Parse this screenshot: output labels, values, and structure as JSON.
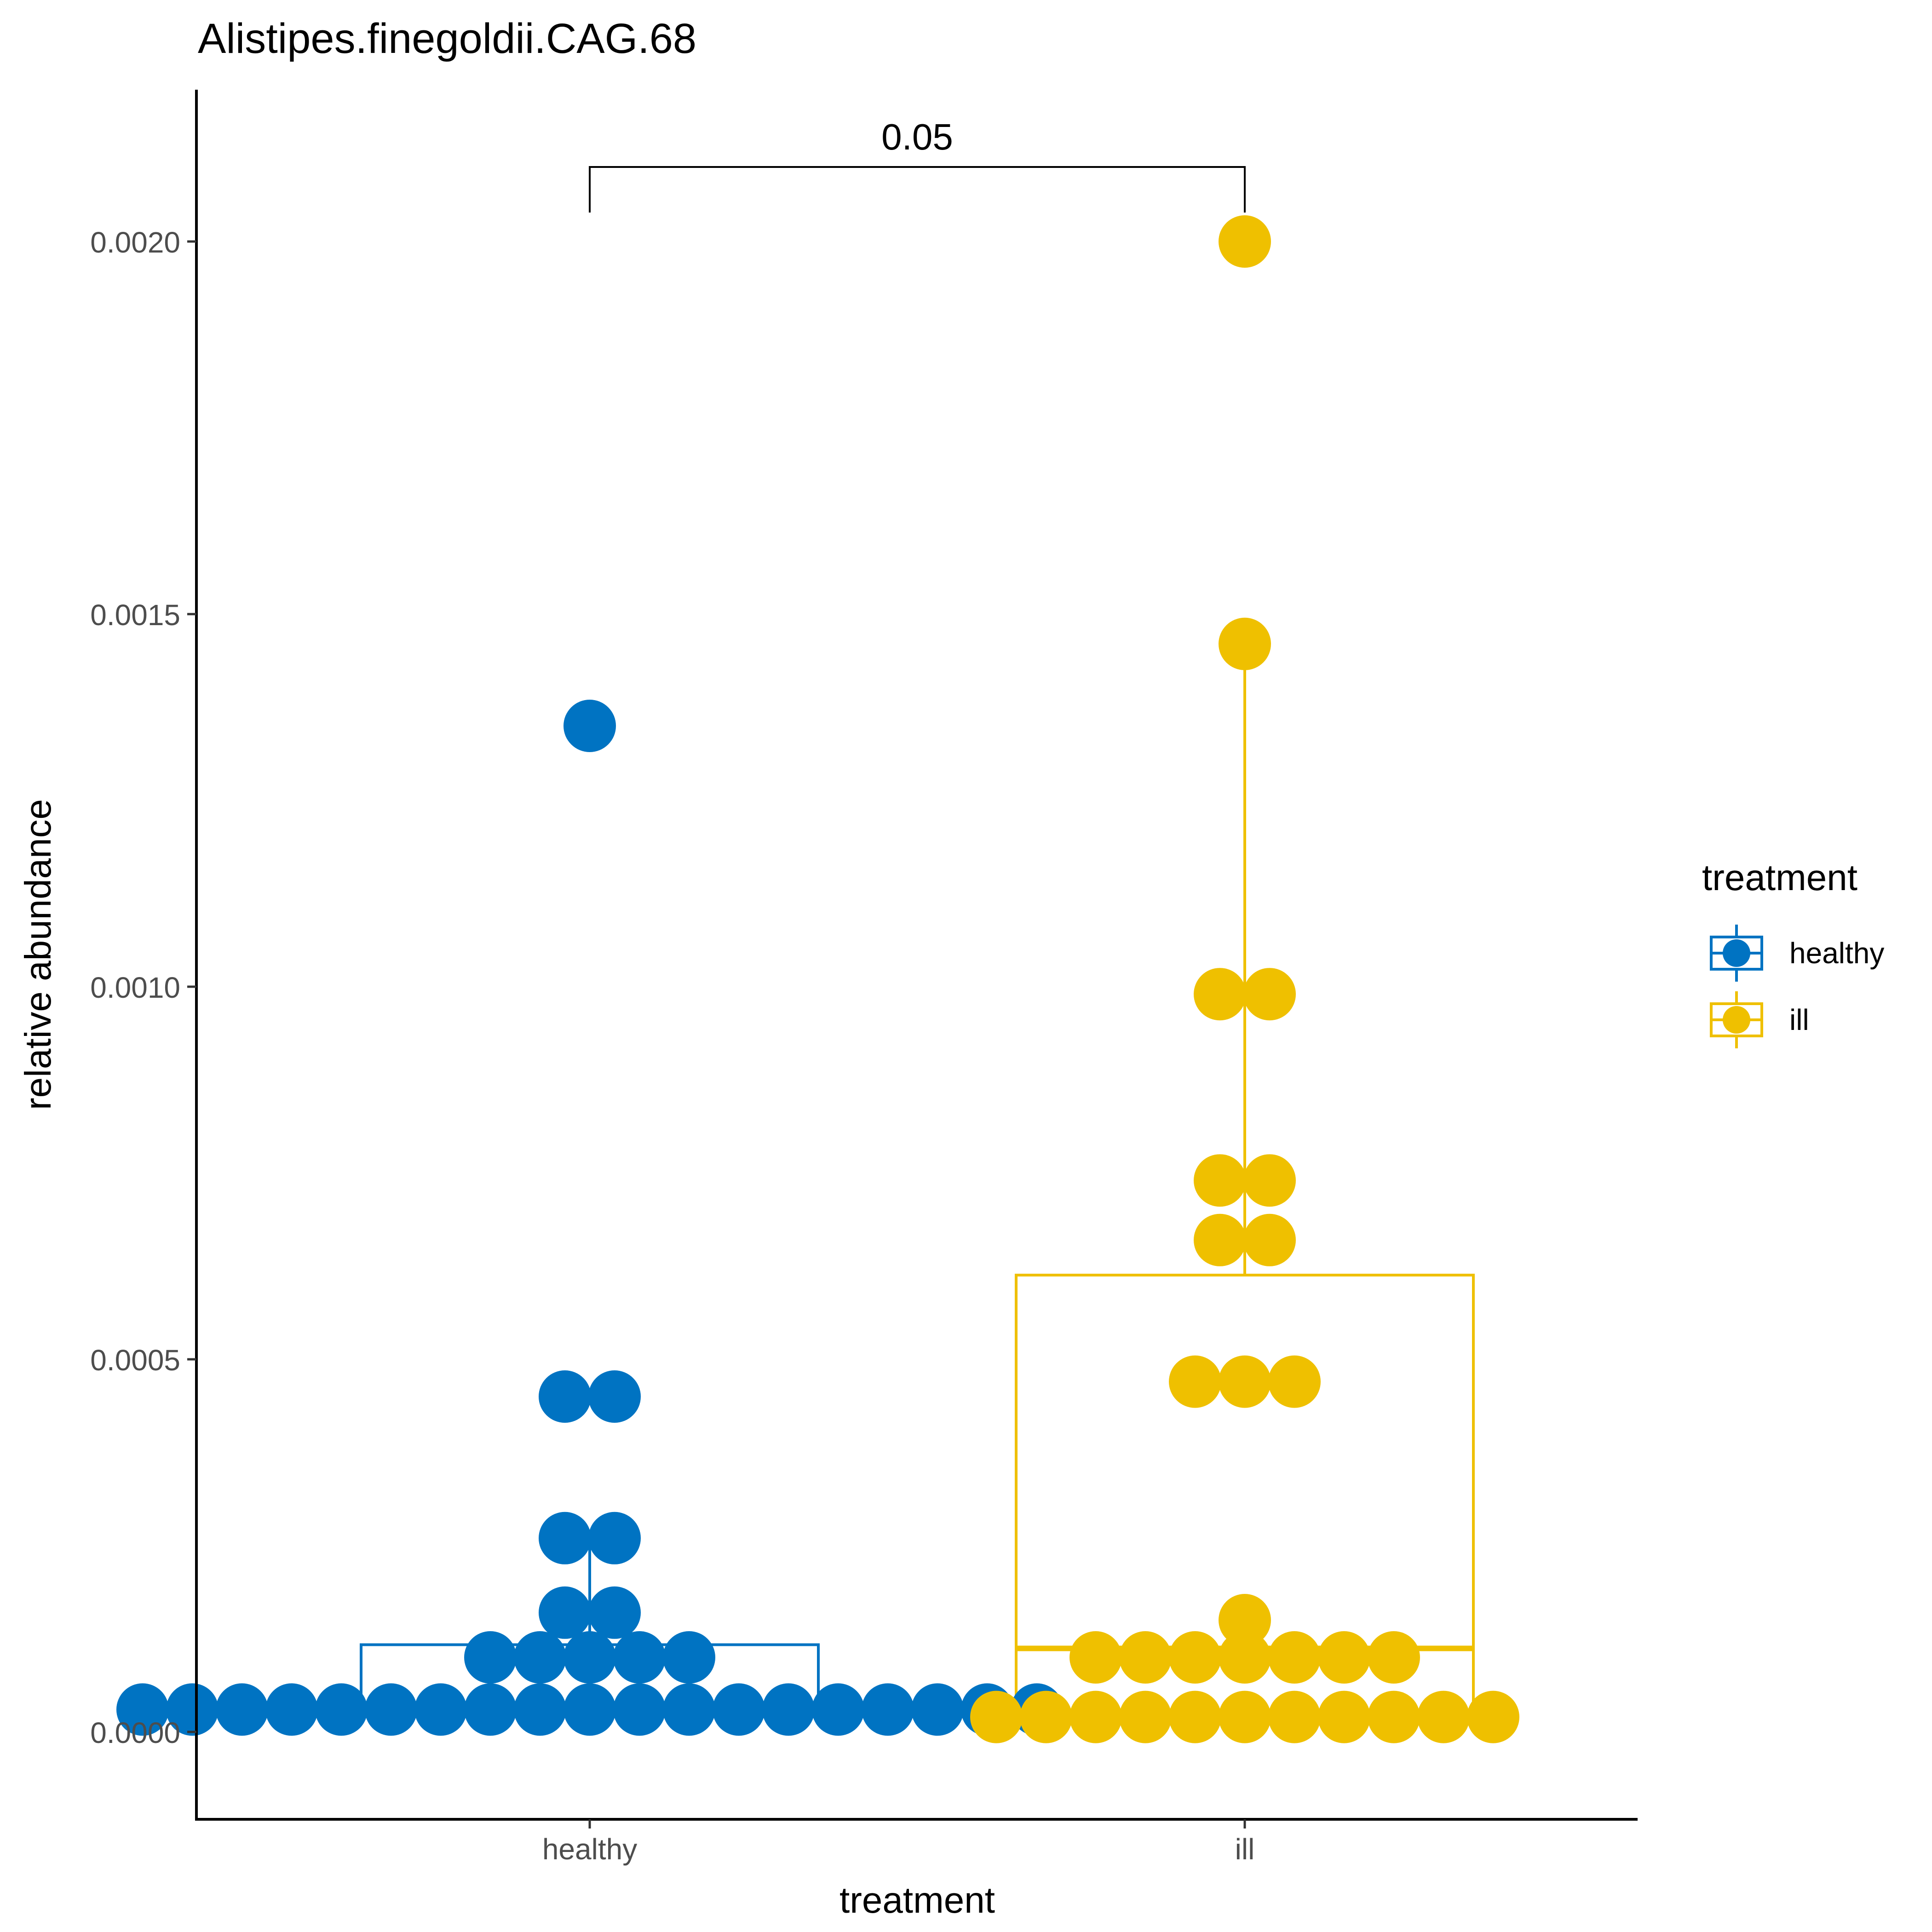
{
  "chart_data": {
    "type": "scatter",
    "title": "Alistipes.finegoldii.CAG.68",
    "xlabel": "treatment",
    "ylabel": "relative abundance",
    "categories": [
      "healthy",
      "ill"
    ],
    "ylim": [
      -0.000113,
      0.0022
    ],
    "yticks": [
      0,
      0.0005,
      0.001,
      0.0015,
      0.002
    ],
    "ytick_labels": [
      "0.0000",
      "0.0005",
      "0.0010",
      "0.0015",
      "0.0020"
    ],
    "grid": false,
    "legend": {
      "title": "treatment",
      "position": "right",
      "entries": [
        "healthy",
        "ill"
      ]
    },
    "colors": {
      "healthy": "#0073C2",
      "ill": "#EFC000",
      "axis": "#000000"
    },
    "boxes": [
      {
        "name": "healthy",
        "min": 3e-05,
        "q1": 3e-05,
        "median": 3e-05,
        "q3": 0.000117,
        "max": 0.00026
      },
      {
        "name": "ill",
        "min": 2e-05,
        "q1": 2e-05,
        "median": 0.000112,
        "q3": 0.000613,
        "max": 0.00146
      }
    ],
    "series": [
      {
        "name": "healthy",
        "values": [
          3e-05,
          3e-05,
          3e-05,
          3e-05,
          3e-05,
          3e-05,
          3e-05,
          3e-05,
          3e-05,
          3e-05,
          3e-05,
          3e-05,
          3e-05,
          3e-05,
          3e-05,
          3e-05,
          3e-05,
          3e-05,
          3e-05,
          0.0001,
          0.0001,
          0.0001,
          0.0001,
          0.0001,
          0.00016,
          0.00016,
          0.00026,
          0.00026,
          0.00045,
          0.00045,
          0.00135
        ]
      },
      {
        "name": "ill",
        "values": [
          2e-05,
          2e-05,
          2e-05,
          2e-05,
          2e-05,
          2e-05,
          2e-05,
          2e-05,
          2e-05,
          2e-05,
          2e-05,
          0.0001,
          0.0001,
          0.0001,
          0.0001,
          0.0001,
          0.0001,
          0.0001,
          0.00015,
          0.00047,
          0.00047,
          0.00047,
          0.00066,
          0.00066,
          0.00074,
          0.00074,
          0.00099,
          0.00099,
          0.00146,
          0.002
        ]
      }
    ],
    "annotations": [
      {
        "text": "0.05",
        "between": [
          "healthy",
          "ill"
        ]
      }
    ]
  }
}
